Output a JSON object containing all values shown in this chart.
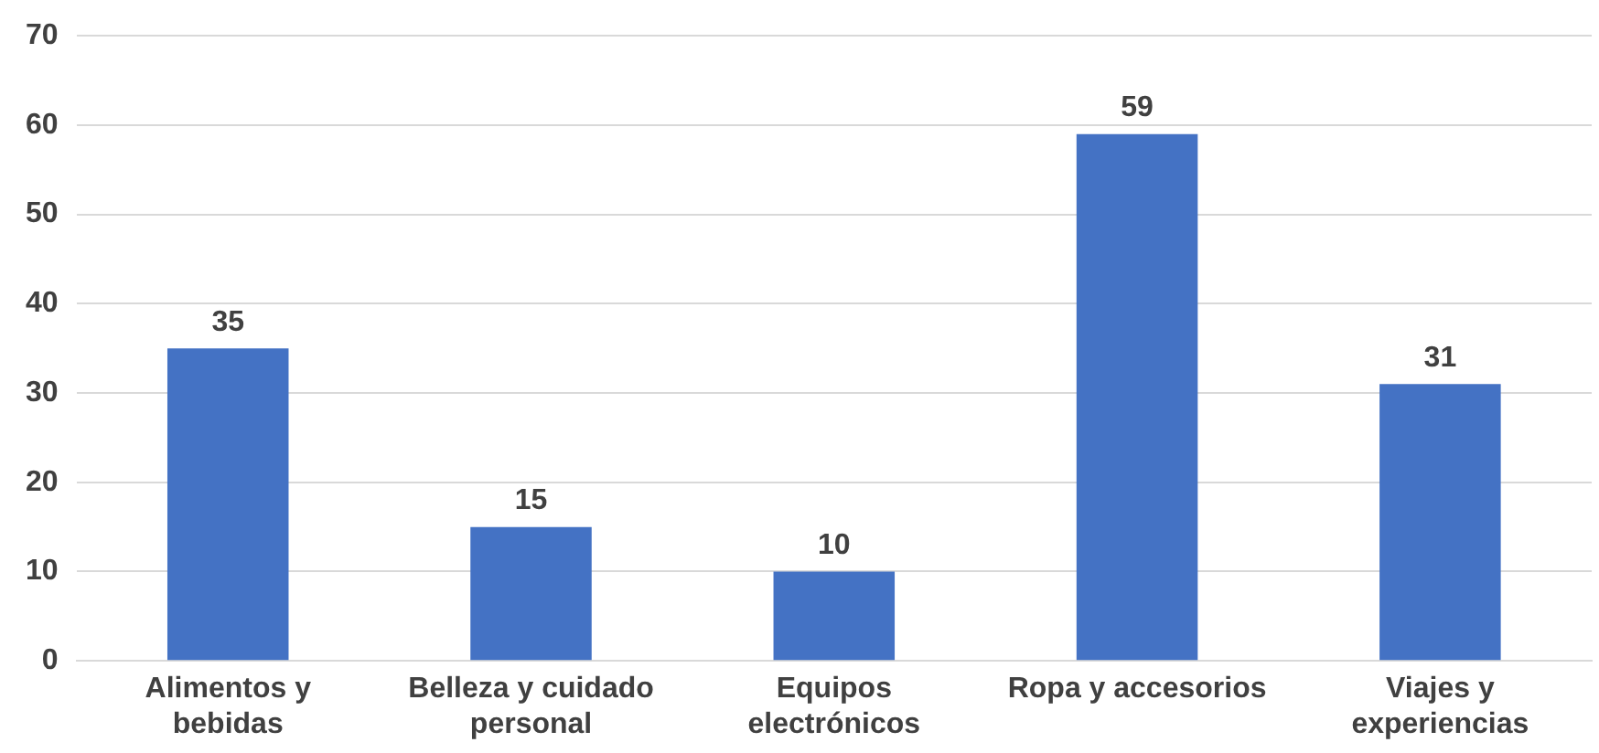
{
  "chart_data": {
    "type": "bar",
    "categories": [
      "Alimentos y bebidas",
      "Belleza y cuidado personal",
      "Equipos electrónicos",
      "Ropa y accesorios",
      "Viajes y experiencias"
    ],
    "values": [
      35,
      15,
      10,
      59,
      31
    ],
    "color": "#4472c4",
    "ylim": [
      0,
      70
    ],
    "yticks": [
      0,
      10,
      20,
      30,
      40,
      50,
      60,
      70
    ],
    "grid": "y",
    "data_labels": true,
    "legend": false
  }
}
